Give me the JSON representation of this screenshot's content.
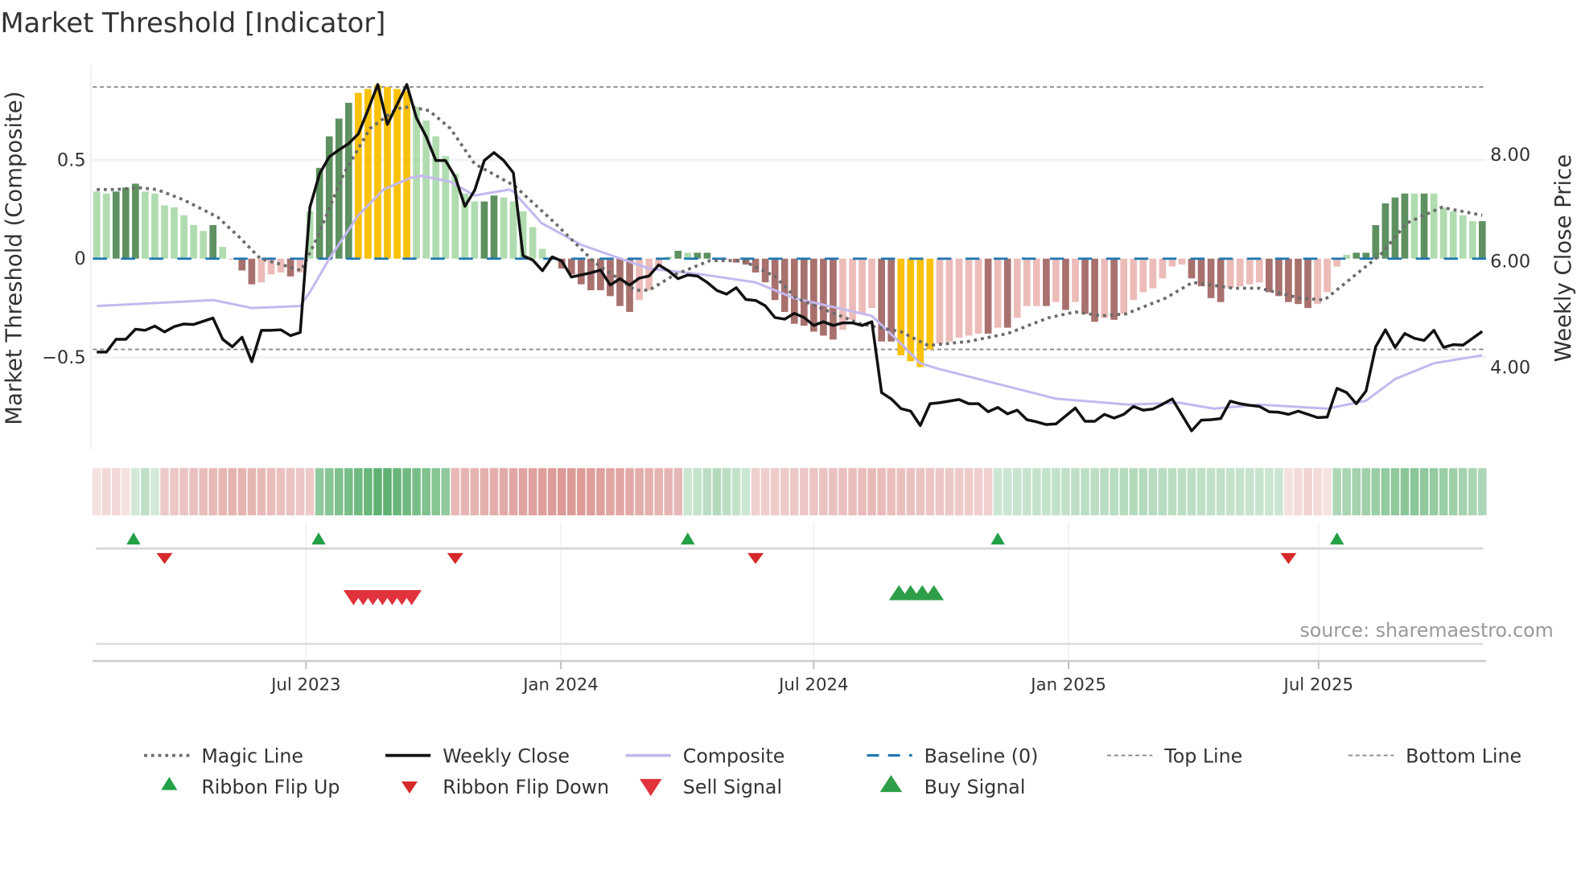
{
  "chart_data": {
    "type": "bar",
    "title": "Market Threshold [Indicator]",
    "source": "source: sharemaestro.com",
    "x_axis": {
      "unit": "week index",
      "range": [
        -0.4,
        143.4
      ],
      "ticks": [
        21.6,
        47.9,
        74.0,
        100.3,
        126.1
      ],
      "tick_labels": [
        "Jul 2023",
        "Jan 2024",
        "Jul 2024",
        "Jan 2025",
        "Jul 2025"
      ]
    },
    "left_axis": {
      "label": "Market Threshold (Composite)",
      "range": [
        -0.97,
        0.98
      ],
      "ticks": [
        0.5,
        0,
        -0.5
      ],
      "tick_labels": [
        "0.5",
        "0",
        "−0.5"
      ],
      "grid": true
    },
    "right_axis": {
      "label": "Weekly Close Price",
      "range": [
        2.45,
        9.68
      ],
      "ticks": [
        8,
        6,
        4
      ],
      "tick_labels": [
        "8.00",
        "6.00",
        "4.00"
      ]
    },
    "top_line": 0.87,
    "bottom_line": -0.46,
    "baseline": 0,
    "colors": {
      "G": "#5e9160",
      "g": "#b0dcb0",
      "Y": "#f9c10a",
      "R": "#a8716e",
      "r": "#ecbcb8",
      "close": "#111111",
      "composite": "#c4b8ef",
      "magic": "#6b6b6b",
      "baseline": "#1f77b4",
      "ribbon_green": "#3a9f50",
      "ribbon_red": "#c9625c",
      "signal_up": "#22a045",
      "signal_down": "#e0333c"
    },
    "composite_bars": [
      0.34,
      0.33,
      0.34,
      0.36,
      0.38,
      0.34,
      0.33,
      0.27,
      0.26,
      0.22,
      0.17,
      0.14,
      0.17,
      0.06,
      -0.005,
      -0.06,
      -0.13,
      -0.12,
      -0.08,
      -0.07,
      -0.09,
      -0.07,
      0.24,
      0.46,
      0.62,
      0.71,
      0.79,
      0.84,
      0.86,
      0.88,
      0.87,
      0.86,
      0.85,
      0.77,
      0.7,
      0.62,
      0.52,
      0.43,
      0.33,
      0.29,
      0.29,
      0.32,
      0.31,
      0.29,
      0.24,
      0.16,
      0.05,
      0.005,
      -0.05,
      -0.08,
      -0.13,
      -0.16,
      -0.16,
      -0.19,
      -0.24,
      -0.27,
      -0.21,
      -0.16,
      -0.04,
      0.01,
      0.04,
      0.03,
      0.03,
      0.03,
      -0.003,
      -0.005,
      -0.02,
      -0.03,
      -0.07,
      -0.12,
      -0.21,
      -0.27,
      -0.33,
      -0.34,
      -0.37,
      -0.39,
      -0.41,
      -0.36,
      -0.31,
      -0.28,
      -0.25,
      -0.42,
      -0.42,
      -0.49,
      -0.52,
      -0.55,
      -0.46,
      -0.43,
      -0.42,
      -0.4,
      -0.39,
      -0.38,
      -0.38,
      -0.35,
      -0.35,
      -0.3,
      -0.24,
      -0.24,
      -0.24,
      -0.22,
      -0.26,
      -0.22,
      -0.28,
      -0.32,
      -0.3,
      -0.31,
      -0.28,
      -0.21,
      -0.17,
      -0.15,
      -0.1,
      -0.04,
      -0.03,
      -0.1,
      -0.14,
      -0.2,
      -0.22,
      -0.15,
      -0.14,
      -0.13,
      -0.12,
      -0.17,
      -0.19,
      -0.22,
      -0.23,
      -0.25,
      -0.23,
      -0.17,
      -0.04,
      0.02,
      0.03,
      0.03,
      0.17,
      0.28,
      0.31,
      0.33,
      0.33,
      0.33,
      0.33,
      0.26,
      0.24,
      0.22,
      0.19,
      0.19
    ],
    "bar_states": "ggGGGgggggggGgrRRrrrRrgGGGGYYYYYYgggggggGGggggggRRRRRRRRrrrgGgGGrrRRRRRRRRRRRrrrrRRYYYYrrrrrRrRrrrRrRrRRrRrrrrrrrRRRRrrrrRRRRRrrrgGGGGGGgGgggggG",
    "weekly_close": [
      4.29,
      4.29,
      4.53,
      4.53,
      4.72,
      4.7,
      4.78,
      4.67,
      4.77,
      4.82,
      4.81,
      4.87,
      4.93,
      4.53,
      4.39,
      4.57,
      4.11,
      4.7,
      4.7,
      4.71,
      4.6,
      4.66,
      7.01,
      7.64,
      7.96,
      8.09,
      8.21,
      8.39,
      8.84,
      9.32,
      8.57,
      8.94,
      9.32,
      8.69,
      8.34,
      7.89,
      7.89,
      7.58,
      7.03,
      7.33,
      7.89,
      8.04,
      7.89,
      7.66,
      6.1,
      6.02,
      5.82,
      6.08,
      6.0,
      5.7,
      5.74,
      5.78,
      5.83,
      5.55,
      5.67,
      5.55,
      5.68,
      5.72,
      5.93,
      5.82,
      5.67,
      5.74,
      5.72,
      5.6,
      5.45,
      5.38,
      5.5,
      5.28,
      5.26,
      5.16,
      4.94,
      4.91,
      5.02,
      4.94,
      4.79,
      4.86,
      4.79,
      4.84,
      4.84,
      4.79,
      4.86,
      3.53,
      3.41,
      3.23,
      3.18,
      2.91,
      3.32,
      3.34,
      3.37,
      3.4,
      3.32,
      3.32,
      3.17,
      3.25,
      3.13,
      3.2,
      3.02,
      2.98,
      2.93,
      2.94,
      3.09,
      3.24,
      2.99,
      2.99,
      3.12,
      3.05,
      3.12,
      3.27,
      3.2,
      3.22,
      3.31,
      3.41,
      3.11,
      2.81,
      3.01,
      3.02,
      3.04,
      3.37,
      3.32,
      3.29,
      3.27,
      3.17,
      3.16,
      3.12,
      3.18,
      3.12,
      3.06,
      3.07,
      3.61,
      3.53,
      3.32,
      3.56,
      4.39,
      4.71,
      4.38,
      4.64,
      4.55,
      4.51,
      4.7,
      4.38,
      4.43,
      4.42,
      4.55,
      4.68
    ],
    "composite_line": [
      [
        0,
        -0.24
      ],
      [
        12,
        -0.21
      ],
      [
        16,
        -0.25
      ],
      [
        21,
        -0.24
      ],
      [
        22,
        -0.17
      ],
      [
        24,
        0.0
      ],
      [
        27,
        0.22
      ],
      [
        29.6,
        0.35
      ],
      [
        32.4,
        0.41
      ],
      [
        33.5,
        0.42
      ],
      [
        36.5,
        0.39
      ],
      [
        39,
        0.32
      ],
      [
        42.6,
        0.35
      ],
      [
        43,
        0.34
      ],
      [
        45.9,
        0.18
      ],
      [
        50,
        0.07
      ],
      [
        57,
        -0.05
      ],
      [
        62.5,
        -0.08
      ],
      [
        68,
        -0.12
      ],
      [
        72,
        -0.2
      ],
      [
        80,
        -0.29
      ],
      [
        83,
        -0.43
      ],
      [
        85,
        -0.53
      ],
      [
        87,
        -0.56
      ],
      [
        99,
        -0.71
      ],
      [
        106.5,
        -0.74
      ],
      [
        111.7,
        -0.73
      ],
      [
        115.3,
        -0.76
      ],
      [
        120,
        -0.74
      ],
      [
        127,
        -0.76
      ],
      [
        131,
        -0.72
      ],
      [
        134,
        -0.61
      ],
      [
        138,
        -0.53
      ],
      [
        143,
        -0.49
      ]
    ],
    "magic_line": [
      [
        0,
        0.35
      ],
      [
        2,
        0.35
      ],
      [
        4.3,
        0.36
      ],
      [
        6.2,
        0.35
      ],
      [
        8.9,
        0.3
      ],
      [
        12.5,
        0.21
      ],
      [
        14.7,
        0.11
      ],
      [
        16.9,
        0.0
      ],
      [
        19.1,
        -0.03
      ],
      [
        21.1,
        -0.06
      ],
      [
        22.7,
        0.1
      ],
      [
        25.5,
        0.43
      ],
      [
        28.2,
        0.66
      ],
      [
        31,
        0.76
      ],
      [
        32.4,
        0.77
      ],
      [
        34.3,
        0.75
      ],
      [
        36.5,
        0.66
      ],
      [
        39,
        0.48
      ],
      [
        43.1,
        0.37
      ],
      [
        47.3,
        0.18
      ],
      [
        51.4,
        -0.02
      ],
      [
        55.6,
        -0.16
      ],
      [
        57,
        -0.16
      ],
      [
        59.7,
        -0.08
      ],
      [
        63.3,
        -0.01
      ],
      [
        66.7,
        -0.01
      ],
      [
        70,
        -0.09
      ],
      [
        72.2,
        -0.2
      ],
      [
        74.7,
        -0.25
      ],
      [
        78.8,
        -0.33
      ],
      [
        83,
        -0.37
      ],
      [
        85.8,
        -0.44
      ],
      [
        89.9,
        -0.42
      ],
      [
        94,
        -0.38
      ],
      [
        98.2,
        -0.3
      ],
      [
        101,
        -0.27
      ],
      [
        103.7,
        -0.29
      ],
      [
        106.2,
        -0.28
      ],
      [
        110.3,
        -0.2
      ],
      [
        113.1,
        -0.12
      ],
      [
        117.3,
        -0.15
      ],
      [
        120,
        -0.15
      ],
      [
        124.2,
        -0.2
      ],
      [
        126.7,
        -0.21
      ],
      [
        129.7,
        -0.09
      ],
      [
        132.5,
        0.02
      ],
      [
        135.2,
        0.18
      ],
      [
        138.8,
        0.26
      ],
      [
        143,
        0.22
      ]
    ],
    "ribbon": [
      {
        "from": 0,
        "to": 3,
        "state": "red",
        "strength": 0.25
      },
      {
        "from": 4,
        "to": 6,
        "state": "green",
        "strength": 0.3
      },
      {
        "from": 7,
        "to": 22,
        "state": "red",
        "strength": 0.45
      },
      {
        "from": 23,
        "to": 36,
        "state": "green",
        "strength": 0.75
      },
      {
        "from": 37,
        "to": 60,
        "state": "red",
        "strength": 0.6
      },
      {
        "from": 61,
        "to": 67,
        "state": "green",
        "strength": 0.35
      },
      {
        "from": 68,
        "to": 92,
        "state": "red",
        "strength": 0.4
      },
      {
        "from": 93,
        "to": 122,
        "state": "green",
        "strength": 0.35
      },
      {
        "from": 123,
        "to": 127,
        "state": "red",
        "strength": 0.25
      },
      {
        "from": 128,
        "to": 143,
        "state": "green",
        "strength": 0.55
      }
    ],
    "signals": {
      "ribbon_flip_up": [
        3.8,
        22.9,
        61,
        93,
        128
      ],
      "ribbon_flip_down": [
        7,
        37,
        68,
        123
      ],
      "sell": [
        26.5,
        27.5,
        28.5,
        29.5,
        30.5,
        31.5,
        32.5
      ],
      "buy": [
        82.8,
        84,
        85.2,
        86.4
      ]
    },
    "legend": [
      {
        "label": "Magic Line",
        "kind": "magic"
      },
      {
        "label": "Weekly Close",
        "kind": "close"
      },
      {
        "label": "Composite",
        "kind": "composite"
      },
      {
        "label": "Baseline (0)",
        "kind": "baseline"
      },
      {
        "label": "Top Line",
        "kind": "top"
      },
      {
        "label": "Bottom Line",
        "kind": "bottom"
      },
      {
        "label": "Ribbon Flip Up",
        "kind": "flipup"
      },
      {
        "label": "Ribbon Flip Down",
        "kind": "flipdown"
      },
      {
        "label": "Sell Signal",
        "kind": "sell"
      },
      {
        "label": "Buy Signal",
        "kind": "buy"
      }
    ],
    "legend_placement": "bottom"
  }
}
